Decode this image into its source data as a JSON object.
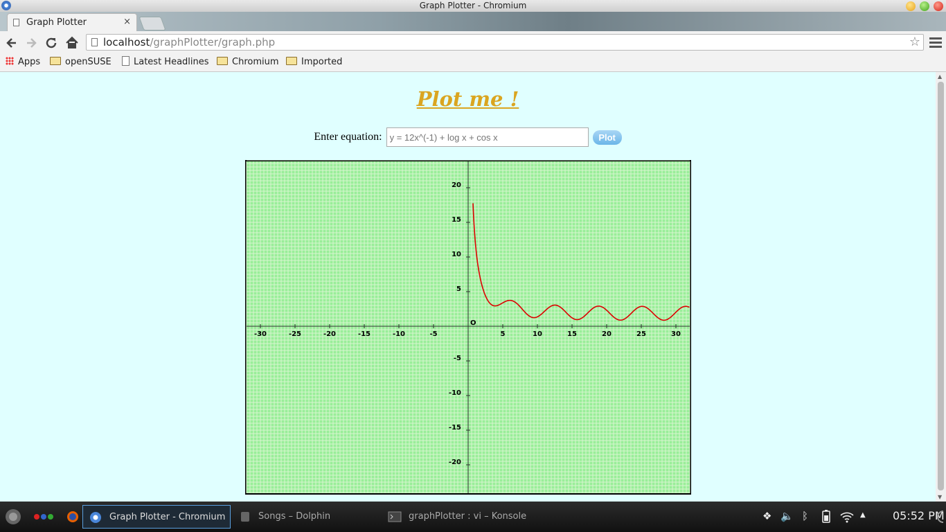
{
  "window": {
    "title": "Graph Plotter - Chromium"
  },
  "tabs": [
    {
      "label": "Graph Plotter",
      "close": "×"
    }
  ],
  "address_bar": {
    "host": "localhost",
    "path": "/graphPlotter/graph.php"
  },
  "bookmarks": [
    {
      "label": "Apps",
      "icon": "apps-grid-icon"
    },
    {
      "label": "openSUSE",
      "icon": "folder-icon"
    },
    {
      "label": "Latest Headlines",
      "icon": "page-icon"
    },
    {
      "label": "Chromium",
      "icon": "folder-icon"
    },
    {
      "label": "Imported",
      "icon": "folder-icon"
    }
  ],
  "page": {
    "heading": "Plot me !",
    "equation_label": "Enter equation:",
    "equation_placeholder": "y = 12x^(-1) + log x + cos x",
    "plot_button": "Plot"
  },
  "chart_data": {
    "type": "line",
    "function": "y = 12x^(-1) + log x + cos x",
    "xlim": [
      -32,
      32
    ],
    "ylim": [
      -24,
      24
    ],
    "grid": true,
    "origin_label": "O",
    "x_ticks": [
      -30,
      -25,
      -20,
      -15,
      -10,
      -5,
      5,
      10,
      15,
      20,
      25,
      30
    ],
    "y_ticks": [
      20,
      15,
      10,
      5,
      -5,
      -10,
      -15,
      -20
    ],
    "series": [
      {
        "color": "#dd0000"
      }
    ],
    "colors": {
      "background": "#99ee99",
      "grid": "#d8f5d0",
      "axis": "#333333"
    }
  },
  "taskbar": {
    "tasks": [
      {
        "label": "Graph Plotter - Chromium",
        "active": true
      },
      {
        "label": "Songs – Dolphin",
        "active": false
      },
      {
        "label": "graphPlotter : vi – Konsole",
        "active": false
      }
    ],
    "clock": "05:52 PM"
  }
}
